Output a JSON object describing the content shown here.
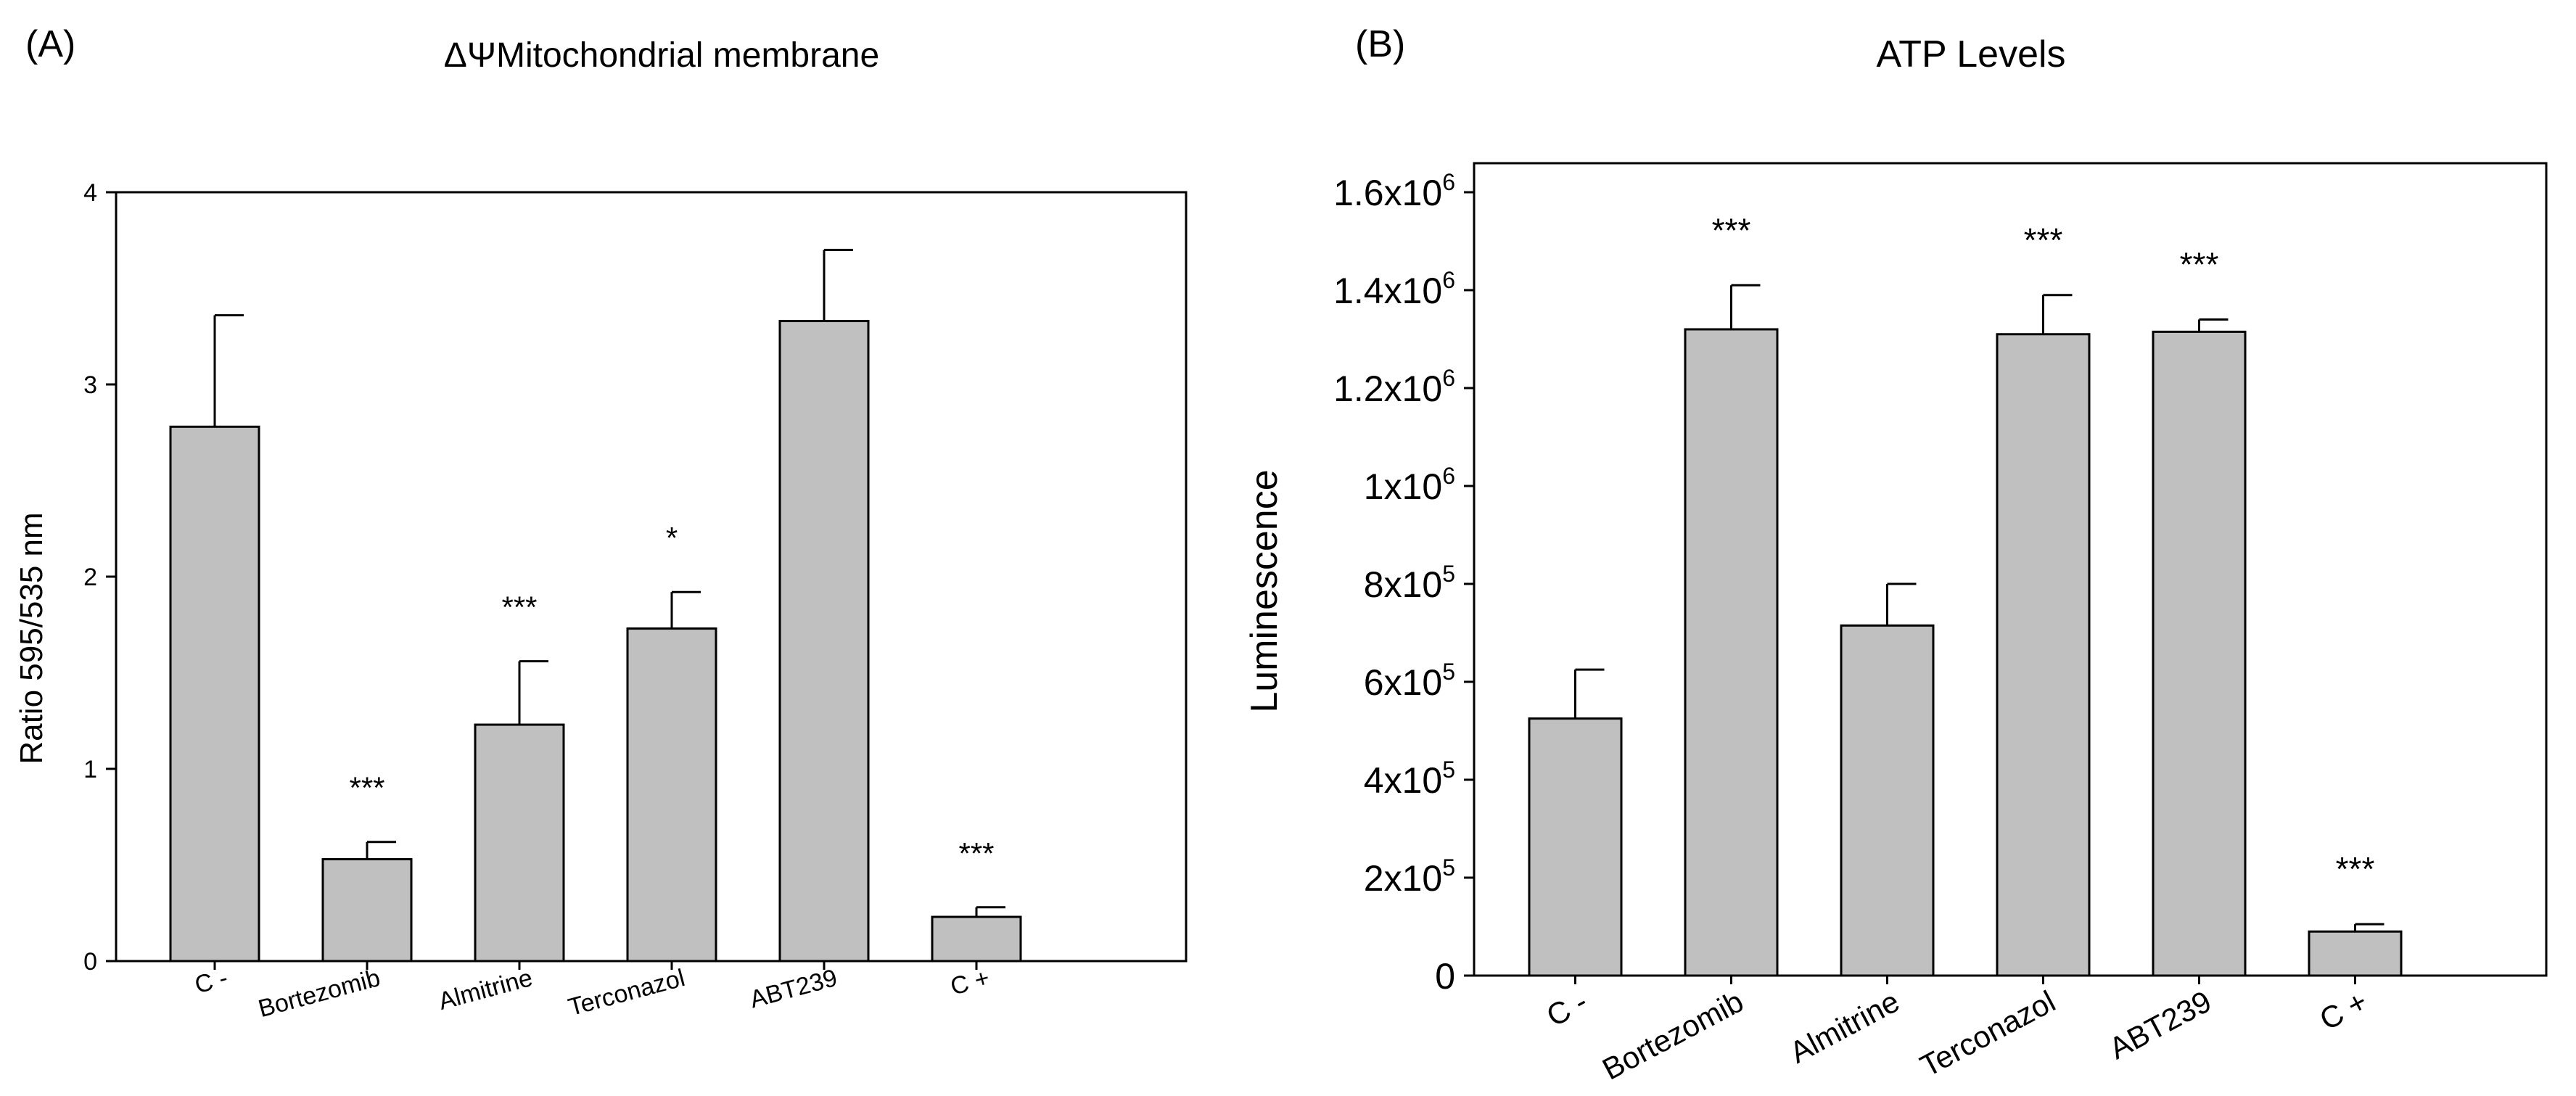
{
  "chart_data": [
    {
      "panel_label": "(A)",
      "type": "bar",
      "title": "ΔΨMitochondrial membrane",
      "ylabel": "Ratio 595/535 nm",
      "xlabel": "",
      "ylim": [
        0,
        4
      ],
      "yticks": [
        {
          "value": 0,
          "label": "0"
        },
        {
          "value": 1,
          "label": "1"
        },
        {
          "value": 2,
          "label": "2"
        },
        {
          "value": 3,
          "label": "3"
        },
        {
          "value": 4,
          "label": "4"
        }
      ],
      "categories": [
        "C -",
        "Bortezomib",
        "Almitrine",
        "Terconazol",
        "ABT239",
        "C +"
      ],
      "values": [
        2.78,
        0.53,
        1.23,
        1.73,
        3.33,
        0.23
      ],
      "errors": [
        0.58,
        0.09,
        0.33,
        0.19,
        0.37,
        0.05
      ],
      "significance": [
        "",
        "***",
        "***",
        "*",
        "",
        "***"
      ],
      "bar_color": "#c0c0c0",
      "grid": false
    },
    {
      "panel_label": "(B)",
      "type": "bar",
      "title": "ATP Levels",
      "ylabel": "Luminescence",
      "xlabel": "",
      "ylim": [
        0,
        1600000
      ],
      "yticks": [
        {
          "value": 0,
          "label": "0"
        },
        {
          "value": 200000,
          "label": "2x10",
          "exp": "5"
        },
        {
          "value": 400000,
          "label": "4x10",
          "exp": "5"
        },
        {
          "value": 600000,
          "label": "6x10",
          "exp": "5"
        },
        {
          "value": 800000,
          "label": "8x10",
          "exp": "5"
        },
        {
          "value": 1000000,
          "label": "1x10",
          "exp": "6"
        },
        {
          "value": 1200000,
          "label": "1.2x10",
          "exp": "6"
        },
        {
          "value": 1400000,
          "label": "1.4x10",
          "exp": "6"
        },
        {
          "value": 1600000,
          "label": "1.6x10",
          "exp": "6"
        }
      ],
      "categories": [
        "C -",
        "Bortezomib",
        "Almitrine",
        "Terconazol",
        "ABT239",
        "C +"
      ],
      "values": [
        525000,
        1320000,
        715000,
        1310000,
        1315000,
        90000
      ],
      "errors": [
        100000,
        90000,
        85000,
        80000,
        25000,
        15000
      ],
      "significance": [
        "",
        "***",
        "",
        "***",
        "***",
        "***"
      ],
      "bar_color": "#c0c0c0",
      "grid": false
    }
  ]
}
